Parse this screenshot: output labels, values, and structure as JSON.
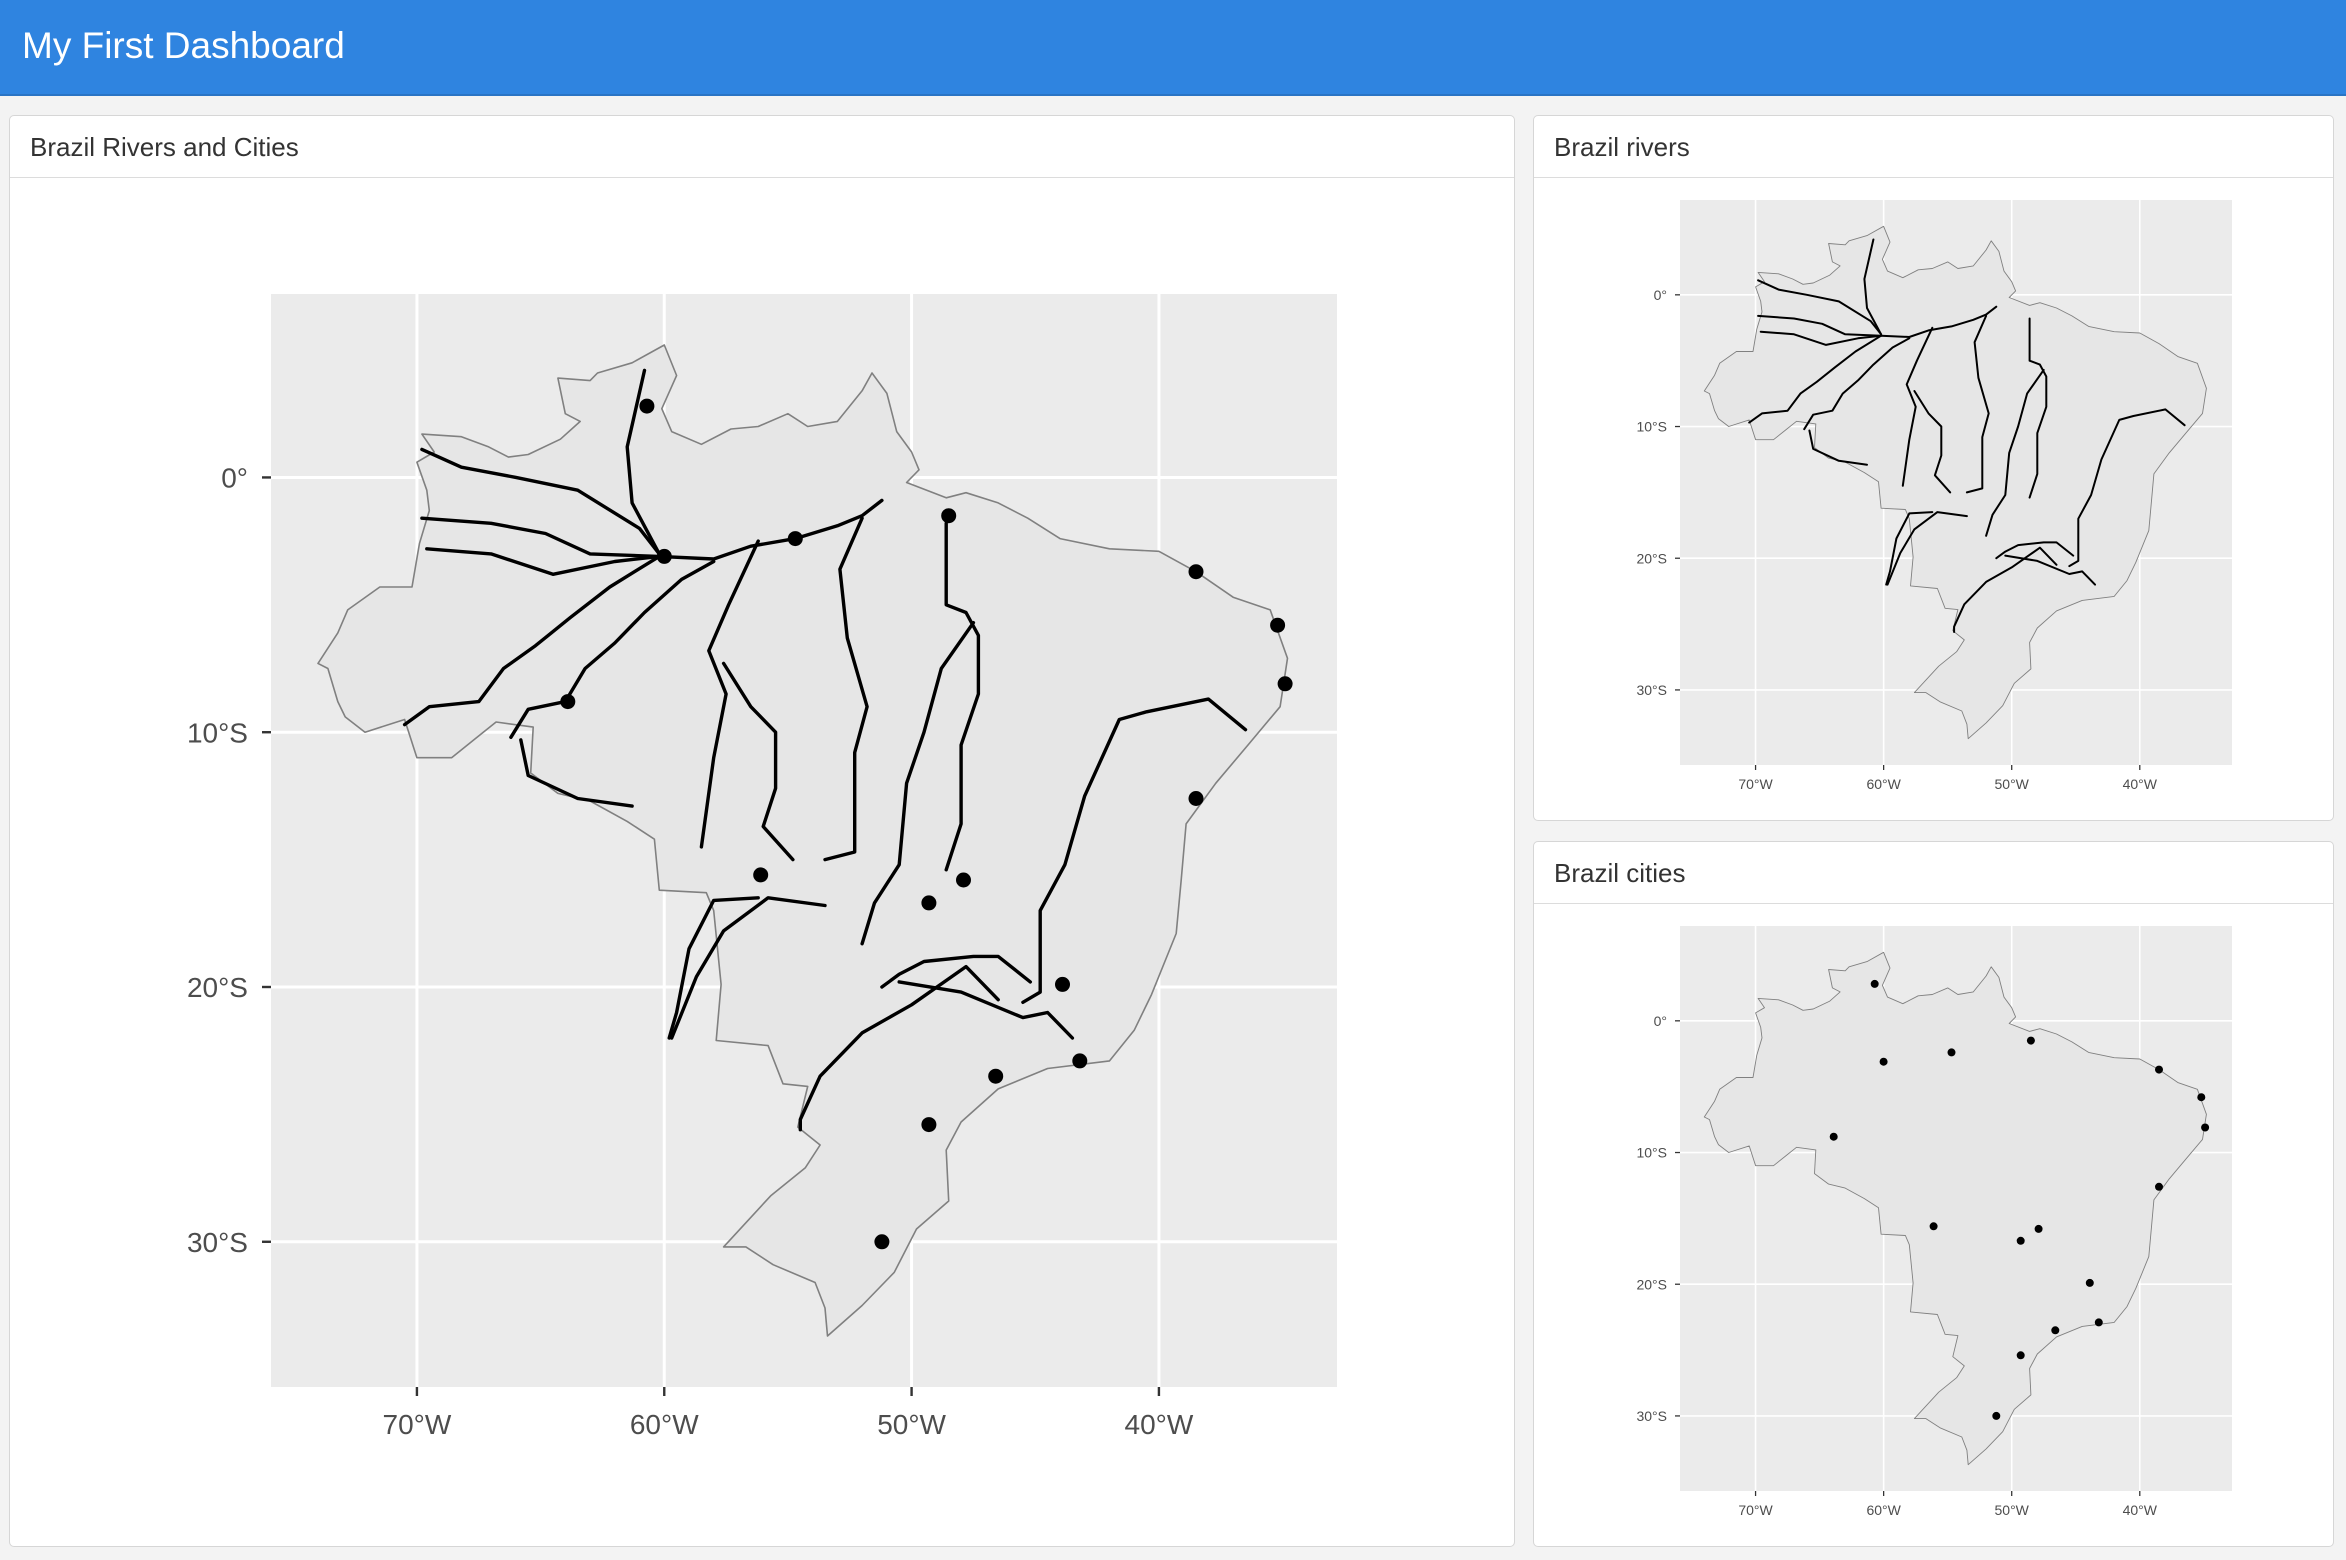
{
  "header": {
    "title": "My First Dashboard"
  },
  "colors": {
    "header_bg": "#2f84e0",
    "panel_bg": "#ebebeb",
    "land": "#e6e6e6",
    "border": "#808080",
    "river": "#000000",
    "city": "#000000"
  },
  "cards": {
    "main": {
      "title": "Brazil Rivers and Cities"
    },
    "rivers": {
      "title": "Brazil rivers"
    },
    "cities": {
      "title": "Brazil cities"
    }
  },
  "chart_data": [
    {
      "type": "map",
      "layers": [
        "country_outline",
        "rivers",
        "cities"
      ],
      "x_ticks": [
        {
          "value": -70,
          "label": "70°W"
        },
        {
          "value": -60,
          "label": "60°W"
        },
        {
          "value": -50,
          "label": "50°W"
        },
        {
          "value": -40,
          "label": "40°W"
        }
      ],
      "y_ticks": [
        {
          "value": 0,
          "label": "0°"
        },
        {
          "value": -10,
          "label": "10°S"
        },
        {
          "value": -20,
          "label": "20°S"
        },
        {
          "value": -30,
          "label": "30°S"
        }
      ],
      "xlim": [
        -75.9,
        -32.8
      ],
      "ylim": [
        -35.7,
        7.2
      ],
      "grid": true
    },
    {
      "type": "map",
      "layers": [
        "country_outline",
        "rivers"
      ],
      "x_ticks": [
        {
          "value": -70,
          "label": "70°W"
        },
        {
          "value": -60,
          "label": "60°W"
        },
        {
          "value": -50,
          "label": "50°W"
        },
        {
          "value": -40,
          "label": "40°W"
        }
      ],
      "y_ticks": [
        {
          "value": 0,
          "label": "0°"
        },
        {
          "value": -10,
          "label": "10°S"
        },
        {
          "value": -20,
          "label": "20°S"
        },
        {
          "value": -30,
          "label": "30°S"
        }
      ],
      "xlim": [
        -75.9,
        -32.8
      ],
      "ylim": [
        -35.7,
        7.2
      ],
      "grid": true
    },
    {
      "type": "map",
      "layers": [
        "country_outline",
        "cities"
      ],
      "x_ticks": [
        {
          "value": -70,
          "label": "70°W"
        },
        {
          "value": -60,
          "label": "60°W"
        },
        {
          "value": -50,
          "label": "50°W"
        },
        {
          "value": -40,
          "label": "40°W"
        }
      ],
      "y_ticks": [
        {
          "value": 0,
          "label": "0°"
        },
        {
          "value": -10,
          "label": "10°S"
        },
        {
          "value": -20,
          "label": "20°S"
        },
        {
          "value": -30,
          "label": "30°S"
        }
      ],
      "xlim": [
        -75.9,
        -32.8
      ],
      "ylim": [
        -35.7,
        7.2
      ],
      "grid": true
    }
  ],
  "geo": {
    "outline": [
      [
        -60.0,
        5.2
      ],
      [
        -59.5,
        4.0
      ],
      [
        -60.1,
        2.7
      ],
      [
        -59.7,
        1.8
      ],
      [
        -58.5,
        1.3
      ],
      [
        -57.3,
        1.9
      ],
      [
        -56.2,
        2.0
      ],
      [
        -55.0,
        2.5
      ],
      [
        -54.2,
        2.0
      ],
      [
        -53.0,
        2.2
      ],
      [
        -52.0,
        3.4
      ],
      [
        -51.6,
        4.1
      ],
      [
        -51.0,
        3.3
      ],
      [
        -50.6,
        1.8
      ],
      [
        -50.0,
        1.0
      ],
      [
        -49.7,
        0.3
      ],
      [
        -50.2,
        -0.2
      ],
      [
        -48.6,
        -0.8
      ],
      [
        -47.8,
        -0.6
      ],
      [
        -46.5,
        -1.0
      ],
      [
        -45.3,
        -1.6
      ],
      [
        -44.0,
        -2.4
      ],
      [
        -42.0,
        -2.8
      ],
      [
        -40.0,
        -2.9
      ],
      [
        -38.5,
        -3.7
      ],
      [
        -37.0,
        -4.7
      ],
      [
        -35.5,
        -5.2
      ],
      [
        -34.8,
        -7.1
      ],
      [
        -35.1,
        -9.0
      ],
      [
        -36.4,
        -10.5
      ],
      [
        -37.7,
        -12.0
      ],
      [
        -38.9,
        -13.6
      ],
      [
        -39.1,
        -15.8
      ],
      [
        -39.3,
        -17.9
      ],
      [
        -40.3,
        -20.3
      ],
      [
        -41.0,
        -21.7
      ],
      [
        -42.0,
        -22.9
      ],
      [
        -44.5,
        -23.2
      ],
      [
        -46.5,
        -24.0
      ],
      [
        -48.0,
        -25.3
      ],
      [
        -48.6,
        -26.4
      ],
      [
        -48.5,
        -28.4
      ],
      [
        -49.8,
        -29.5
      ],
      [
        -50.7,
        -31.2
      ],
      [
        -52.0,
        -32.5
      ],
      [
        -53.4,
        -33.7
      ],
      [
        -53.5,
        -32.6
      ],
      [
        -53.9,
        -31.6
      ],
      [
        -55.6,
        -30.9
      ],
      [
        -56.7,
        -30.2
      ],
      [
        -57.6,
        -30.2
      ],
      [
        -55.7,
        -28.2
      ],
      [
        -54.3,
        -27.1
      ],
      [
        -53.7,
        -26.2
      ],
      [
        -54.6,
        -25.5
      ],
      [
        -54.2,
        -23.9
      ],
      [
        -55.2,
        -23.8
      ],
      [
        -55.8,
        -22.3
      ],
      [
        -57.9,
        -22.1
      ],
      [
        -57.7,
        -19.9
      ],
      [
        -58.0,
        -17.0
      ],
      [
        -58.3,
        -16.3
      ],
      [
        -60.2,
        -16.2
      ],
      [
        -60.4,
        -14.2
      ],
      [
        -61.5,
        -13.5
      ],
      [
        -63.0,
        -12.7
      ],
      [
        -64.3,
        -12.4
      ],
      [
        -65.4,
        -11.6
      ],
      [
        -65.3,
        -9.8
      ],
      [
        -66.8,
        -9.6
      ],
      [
        -67.7,
        -10.3
      ],
      [
        -68.6,
        -11.0
      ],
      [
        -70.0,
        -11.0
      ],
      [
        -70.5,
        -9.5
      ],
      [
        -72.1,
        -10.0
      ],
      [
        -72.9,
        -9.4
      ],
      [
        -73.2,
        -8.8
      ],
      [
        -73.6,
        -7.5
      ],
      [
        -74.0,
        -7.3
      ],
      [
        -73.2,
        -6.1
      ],
      [
        -72.8,
        -5.2
      ],
      [
        -71.5,
        -4.3
      ],
      [
        -70.2,
        -4.3
      ],
      [
        -69.9,
        -2.6
      ],
      [
        -69.5,
        -1.3
      ],
      [
        -69.6,
        -0.5
      ],
      [
        -70.0,
        0.6
      ],
      [
        -69.3,
        1.0
      ],
      [
        -69.8,
        1.7
      ],
      [
        -68.2,
        1.6
      ],
      [
        -67.1,
        1.2
      ],
      [
        -66.3,
        0.8
      ],
      [
        -65.5,
        0.9
      ],
      [
        -64.2,
        1.5
      ],
      [
        -63.4,
        2.2
      ],
      [
        -64.0,
        2.5
      ],
      [
        -64.3,
        3.9
      ],
      [
        -63.0,
        3.8
      ],
      [
        -62.7,
        4.1
      ],
      [
        -61.3,
        4.5
      ]
    ],
    "rivers": [
      [
        [
          -60.8,
          4.2
        ],
        [
          -61.5,
          1.2
        ],
        [
          -61.3,
          -1.0
        ],
        [
          -60.2,
          -3.0
        ]
      ],
      [
        [
          -69.8,
          1.1
        ],
        [
          -68.2,
          0.4
        ],
        [
          -66.0,
          0.0
        ],
        [
          -63.5,
          -0.5
        ],
        [
          -61.0,
          -2.0
        ],
        [
          -60.2,
          -3.0
        ]
      ],
      [
        [
          -69.8,
          -1.6
        ],
        [
          -67.0,
          -1.8
        ],
        [
          -64.8,
          -2.2
        ],
        [
          -63.0,
          -3.0
        ],
        [
          -60.2,
          -3.1
        ]
      ],
      [
        [
          -69.6,
          -2.8
        ],
        [
          -67.0,
          -3.0
        ],
        [
          -64.5,
          -3.8
        ],
        [
          -62.0,
          -3.3
        ],
        [
          -60.2,
          -3.1
        ]
      ],
      [
        [
          -60.2,
          -3.1
        ],
        [
          -58.0,
          -3.2
        ],
        [
          -56.5,
          -2.7
        ],
        [
          -54.7,
          -2.4
        ],
        [
          -53.0,
          -1.9
        ],
        [
          -52.0,
          -1.5
        ],
        [
          -51.2,
          -0.9
        ]
      ],
      [
        [
          -70.5,
          -9.7
        ],
        [
          -69.5,
          -9.0
        ],
        [
          -67.5,
          -8.8
        ],
        [
          -66.5,
          -7.5
        ],
        [
          -65.2,
          -6.6
        ],
        [
          -63.8,
          -5.5
        ],
        [
          -62.2,
          -4.3
        ],
        [
          -60.2,
          -3.1
        ]
      ],
      [
        [
          -66.2,
          -10.2
        ],
        [
          -65.5,
          -9.1
        ],
        [
          -64.0,
          -8.8
        ],
        [
          -63.2,
          -7.5
        ],
        [
          -62.0,
          -6.5
        ],
        [
          -60.8,
          -5.3
        ],
        [
          -59.3,
          -4.0
        ],
        [
          -58.0,
          -3.3
        ]
      ],
      [
        [
          -65.8,
          -10.3
        ],
        [
          -65.5,
          -11.7
        ],
        [
          -63.5,
          -12.6
        ],
        [
          -61.3,
          -12.9
        ]
      ],
      [
        [
          -56.2,
          -2.5
        ],
        [
          -57.4,
          -5.0
        ],
        [
          -58.2,
          -6.8
        ],
        [
          -57.5,
          -8.5
        ],
        [
          -58.0,
          -11.0
        ],
        [
          -58.5,
          -14.5
        ]
      ],
      [
        [
          -57.6,
          -7.3
        ],
        [
          -56.5,
          -9.0
        ],
        [
          -55.5,
          -10.0
        ],
        [
          -55.5,
          -12.2
        ],
        [
          -56.0,
          -13.7
        ],
        [
          -54.8,
          -15.0
        ]
      ],
      [
        [
          -52.0,
          -1.6
        ],
        [
          -52.9,
          -3.6
        ],
        [
          -52.6,
          -6.3
        ],
        [
          -51.8,
          -9.0
        ],
        [
          -52.3,
          -10.8
        ],
        [
          -52.3,
          -14.7
        ],
        [
          -53.5,
          -15.0
        ]
      ],
      [
        [
          -48.6,
          -1.8
        ],
        [
          -48.6,
          -5.0
        ],
        [
          -47.8,
          -5.3
        ],
        [
          -47.3,
          -6.2
        ],
        [
          -47.3,
          -8.5
        ],
        [
          -48.0,
          -10.5
        ],
        [
          -48.0,
          -13.6
        ],
        [
          -48.6,
          -15.4
        ]
      ],
      [
        [
          -47.5,
          -5.7
        ],
        [
          -48.8,
          -7.5
        ],
        [
          -49.5,
          -10.0
        ],
        [
          -50.2,
          -12.0
        ],
        [
          -50.5,
          -15.2
        ],
        [
          -51.5,
          -16.7
        ],
        [
          -52.0,
          -18.3
        ]
      ],
      [
        [
          -56.2,
          -16.5
        ],
        [
          -58.0,
          -16.6
        ],
        [
          -59.0,
          -18.5
        ],
        [
          -59.5,
          -21.0
        ],
        [
          -59.8,
          -22.0
        ]
      ],
      [
        [
          -53.5,
          -16.8
        ],
        [
          -55.8,
          -16.5
        ],
        [
          -57.6,
          -17.8
        ],
        [
          -58.7,
          -19.6
        ],
        [
          -59.7,
          -22.0
        ]
      ],
      [
        [
          -46.5,
          -20.5
        ],
        [
          -47.8,
          -19.2
        ],
        [
          -50.0,
          -20.7
        ],
        [
          -52.0,
          -21.8
        ],
        [
          -53.7,
          -23.5
        ],
        [
          -54.5,
          -25.2
        ],
        [
          -54.5,
          -25.6
        ]
      ],
      [
        [
          -45.2,
          -19.8
        ],
        [
          -46.5,
          -18.8
        ],
        [
          -47.5,
          -18.8
        ],
        [
          -49.5,
          -19.0
        ],
        [
          -50.5,
          -19.5
        ],
        [
          -51.2,
          -20.0
        ]
      ],
      [
        [
          -43.5,
          -22.0
        ],
        [
          -44.5,
          -21.0
        ],
        [
          -45.5,
          -21.2
        ],
        [
          -48.0,
          -20.2
        ],
        [
          -50.5,
          -19.8
        ]
      ],
      [
        [
          -45.5,
          -20.6
        ],
        [
          -44.8,
          -20.2
        ],
        [
          -44.8,
          -17.0
        ],
        [
          -43.8,
          -15.2
        ],
        [
          -43.0,
          -12.5
        ],
        [
          -41.6,
          -9.5
        ],
        [
          -40.5,
          -9.2
        ],
        [
          -38.0,
          -8.7
        ],
        [
          -36.5,
          -9.9
        ]
      ]
    ],
    "cities": [
      [
        -60.7,
        2.8
      ],
      [
        -48.5,
        -1.5
      ],
      [
        -38.5,
        -3.7
      ],
      [
        -35.2,
        -5.8
      ],
      [
        -34.9,
        -8.1
      ],
      [
        -38.5,
        -12.6
      ],
      [
        -60.0,
        -3.1
      ],
      [
        -54.7,
        -2.4
      ],
      [
        -63.9,
        -8.8
      ],
      [
        -56.1,
        -15.6
      ],
      [
        -49.3,
        -16.7
      ],
      [
        -47.9,
        -15.8
      ],
      [
        -43.9,
        -19.9
      ],
      [
        -43.2,
        -22.9
      ],
      [
        -46.6,
        -23.5
      ],
      [
        -49.3,
        -25.4
      ],
      [
        -51.2,
        -30.0
      ]
    ]
  }
}
